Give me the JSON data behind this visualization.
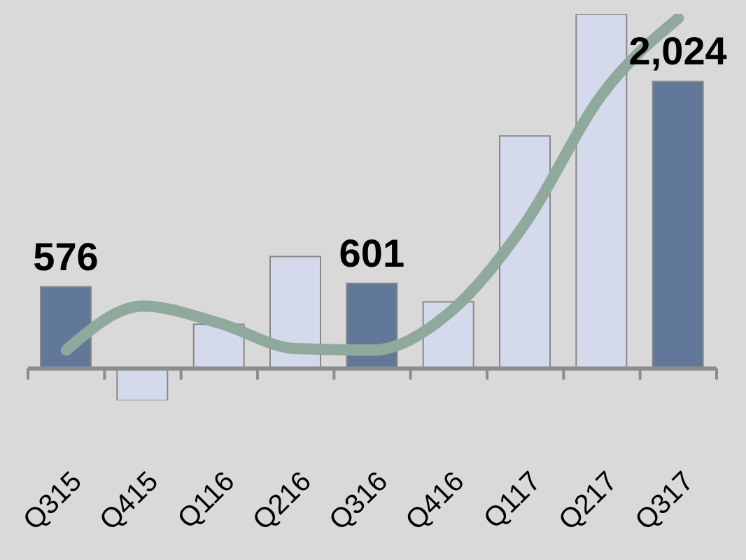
{
  "chart_data": {
    "type": "bar",
    "categories": [
      "Q315",
      "Q415",
      "Q116",
      "Q216",
      "Q316",
      "Q416",
      "Q117",
      "Q217",
      "Q317"
    ],
    "tick_labels": "x",
    "marker": "none",
    "ref_lines": [
      {
        "axis": "y",
        "value": 0,
        "color": "#8c8c8c"
      }
    ],
    "series": [
      {
        "values": [
          576,
          -225,
          312,
          790,
          601,
          470,
          1640,
          2500,
          2024
        ],
        "colors": [
          "#627898",
          "#d5d9ec",
          "#d5d9ec",
          "#d5d9ec",
          "#627898",
          "#d5d9ec",
          "#d5d9ec",
          "#d5d9ec",
          "#627898"
        ],
        "value_labels": [
          "576",
          null,
          null,
          null,
          "601",
          null,
          null,
          null,
          "2,024"
        ]
      },
      {
        "type": "line",
        "color": "#8faa9c",
        "values": [
          130,
          440,
          320,
          140,
          130,
          390,
          1025,
          1930,
          2470
        ]
      }
    ]
  }
}
